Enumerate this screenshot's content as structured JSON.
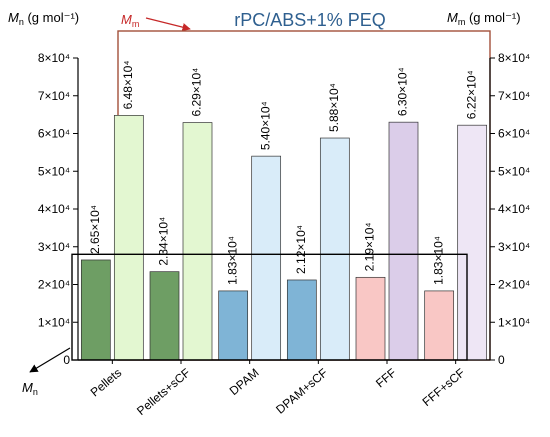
{
  "chart_data": {
    "type": "bar",
    "title": "rPC/ABS+1% PEQ",
    "categories": [
      "Pellets",
      "Pellets+sCF",
      "DPAM",
      "DPAM+sCF",
      "FFF",
      "FFF+sCF"
    ],
    "series": [
      {
        "name": "Mn",
        "values": [
          26500,
          23400,
          18300,
          21200,
          21900,
          18300
        ],
        "labels": [
          "2.65×10⁴",
          "2.34×10⁴",
          "1.83×10⁴",
          "2.12×10⁴",
          "2.19×10⁴",
          "1.83×10⁴"
        ],
        "fills": [
          "#6e9e64",
          "#6e9e64",
          "#7fb4d6",
          "#7fb4d6",
          "#f9c7c5",
          "#f9c7c5"
        ]
      },
      {
        "name": "Mm",
        "values": [
          64800,
          62900,
          54000,
          58800,
          63000,
          62200
        ],
        "labels": [
          "6.48×10⁴",
          "6.29×10⁴",
          "5.40×10⁴",
          "5.88×10⁴",
          "6.30×10⁴",
          "6.22×10⁴"
        ],
        "fills": [
          "#e3f7d1",
          "#e3f7d1",
          "#d9ecf9",
          "#d9ecf9",
          "#dbcde9",
          "#eee6f5"
        ]
      }
    ],
    "ylim": [
      0,
      80000
    ],
    "yticks": [
      {
        "value": 0,
        "label": "0"
      },
      {
        "value": 10000,
        "label": "1×10⁴"
      },
      {
        "value": 20000,
        "label": "2×10⁴"
      },
      {
        "value": 30000,
        "label": "3×10⁴"
      },
      {
        "value": 40000,
        "label": "4×10⁴"
      },
      {
        "value": 50000,
        "label": "5×10⁴"
      },
      {
        "value": 60000,
        "label": "6×10⁴"
      },
      {
        "value": 70000,
        "label": "7×10⁴"
      },
      {
        "value": 80000,
        "label": "8×10⁴"
      }
    ],
    "ylabel_left": {
      "symbol": "M",
      "sub": "n",
      "unit": " (g mol⁻¹)"
    },
    "ylabel_right": {
      "symbol": "M",
      "sub": "m",
      "unit": " (g mol⁻¹)"
    },
    "callout_mm": {
      "symbol": "M",
      "sub": "m"
    },
    "callout_mn": {
      "symbol": "M",
      "sub": "n"
    },
    "colors": {
      "axis": "#000000",
      "title": "#2e5f8f",
      "mm_box": "#a2503a",
      "mm_label": "#c62828",
      "mn_box": "#000000",
      "bar_stroke": "#333333"
    },
    "grid": false
  }
}
